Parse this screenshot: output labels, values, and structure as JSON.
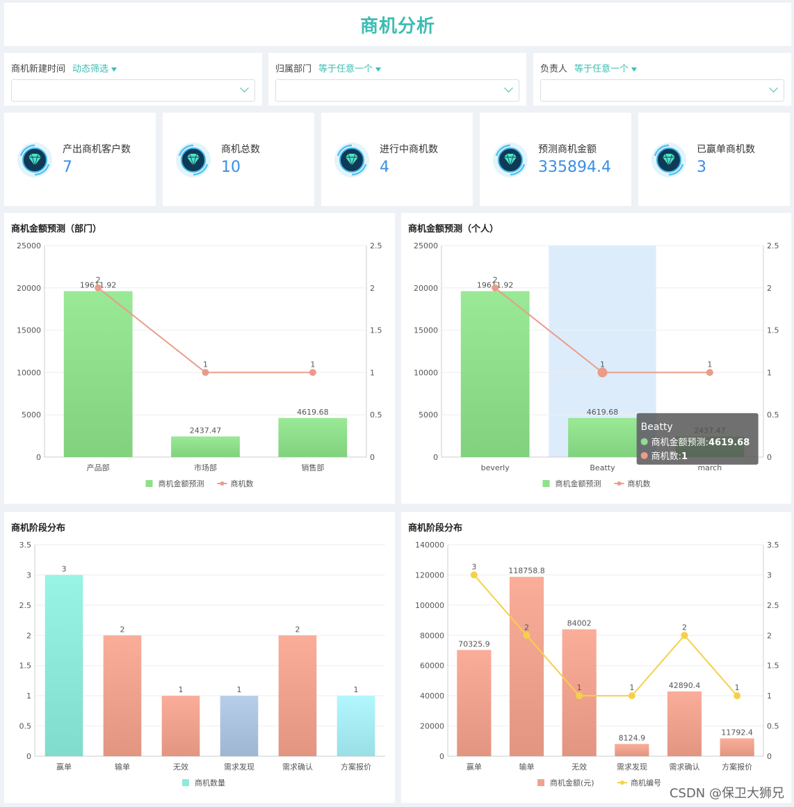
{
  "page": {
    "title": "商机分析",
    "watermark": "CSDN @保卫大狮兄"
  },
  "filters": [
    {
      "label": "商机新建时间",
      "mode": "动态筛选",
      "value": ""
    },
    {
      "label": "归属部门",
      "mode": "等于任意一个",
      "value": ""
    },
    {
      "label": "负责人",
      "mode": "等于任意一个",
      "value": ""
    }
  ],
  "kpis": [
    {
      "label": "产出商机客户数",
      "value": "7",
      "icon": "diamond-icon"
    },
    {
      "label": "商机总数",
      "value": "10",
      "icon": "diamond-icon"
    },
    {
      "label": "进行中商机数",
      "value": "4",
      "icon": "diamond-icon"
    },
    {
      "label": "预测商机金额",
      "value": "335894.4",
      "icon": "diamond-icon"
    },
    {
      "label": "已赢单商机数",
      "value": "3",
      "icon": "diamond-icon"
    }
  ],
  "colors": {
    "accent": "#3dbcb3",
    "kpi_value": "#3a8ee6",
    "green_bar": "#8fdf8c",
    "line_pink": "#ea9c8a",
    "line_yellow": "#f5d04a",
    "highlight": "#dcecfb"
  },
  "chart_data": [
    {
      "type": "bar",
      "title": "商机金额预测（部门）",
      "categories": [
        "产品部",
        "市场部",
        "销售部"
      ],
      "series": [
        {
          "name": "商机金额预测",
          "type": "bar",
          "values": [
            19611.92,
            2437.47,
            4619.68
          ],
          "labels": [
            "19611.92",
            "2437.47",
            "4619.68"
          ],
          "color": "#8fdf8c"
        },
        {
          "name": "商机数",
          "type": "line",
          "axis": "right",
          "values": [
            2,
            1,
            1
          ],
          "labels": [
            "2",
            "1",
            "1"
          ],
          "color": "#ea9c8a"
        }
      ],
      "ylim": [
        0,
        25000
      ],
      "y2lim": [
        0,
        2.5
      ],
      "yticks": [
        "0",
        "5000",
        "10000",
        "15000",
        "20000",
        "25000"
      ],
      "y2ticks": [
        "0",
        "0.5",
        "1",
        "1.5",
        "2",
        "2.5"
      ],
      "legend": "bottom",
      "grid": true
    },
    {
      "type": "bar",
      "title": "商机金额预测（个人）",
      "categories": [
        "beverly",
        "Beatty",
        "march"
      ],
      "series": [
        {
          "name": "商机金额预测",
          "type": "bar",
          "values": [
            19611.92,
            4619.68,
            2437.47
          ],
          "labels": [
            "19611.92",
            "4619.68",
            "2437.47"
          ],
          "color": "#8fdf8c"
        },
        {
          "name": "商机数",
          "type": "line",
          "axis": "right",
          "values": [
            2,
            1,
            1
          ],
          "labels": [
            "2",
            "1",
            "1"
          ],
          "color": "#ea9c8a"
        }
      ],
      "ylim": [
        0,
        25000
      ],
      "y2lim": [
        0,
        2.5
      ],
      "yticks": [
        "0",
        "5000",
        "10000",
        "15000",
        "20000",
        "25000"
      ],
      "y2ticks": [
        "0",
        "0.5",
        "1",
        "1.5",
        "2",
        "2.5"
      ],
      "legend": "bottom",
      "grid": true,
      "highlight_index": 1,
      "tooltip": {
        "title": "Beatty",
        "rows": [
          {
            "label": "商机金额预测:",
            "value": "4619.68",
            "color": "#8fdf8c"
          },
          {
            "label": "商机数:",
            "value": "1",
            "color": "#ea9c8a"
          }
        ]
      }
    },
    {
      "type": "bar",
      "title": "商机阶段分布",
      "categories": [
        "赢单",
        "输单",
        "无效",
        "需求发现",
        "需求确认",
        "方案报价"
      ],
      "series": [
        {
          "name": "商机数量",
          "type": "bar",
          "values": [
            3,
            2,
            1,
            1,
            2,
            1
          ],
          "labels": [
            "3",
            "2",
            "1",
            "1",
            "2",
            "1"
          ],
          "color": "#7de6cf"
        }
      ],
      "bar_colors": [
        "#8eeadb",
        "#f0a38f",
        "#f0a38f",
        "#adc4e0",
        "#f0a38f",
        "#a8ecf4"
      ],
      "ylim": [
        0,
        3.5
      ],
      "yticks": [
        "0",
        "0.5",
        "1",
        "1.5",
        "2",
        "2.5",
        "3",
        "3.5"
      ],
      "legend": "bottom",
      "grid": true
    },
    {
      "type": "bar",
      "title": "商机阶段分布",
      "categories": [
        "赢单",
        "输单",
        "无效",
        "需求发现",
        "需求确认",
        "方案报价"
      ],
      "series": [
        {
          "name": "商机金额(元)",
          "type": "bar",
          "values": [
            70325.9,
            118758.8,
            84002,
            8124.9,
            42890.4,
            11792.4
          ],
          "labels": [
            "70325.9",
            "118758.8",
            "84002",
            "8124.9",
            "42890.4",
            "11792.4"
          ],
          "color": "#f0a38f"
        },
        {
          "name": "商机编号",
          "type": "line",
          "axis": "right",
          "values": [
            3,
            2,
            1,
            1,
            2,
            1
          ],
          "labels": [
            "3",
            "2",
            "1",
            "1",
            "2",
            "1"
          ],
          "color": "#f5d04a"
        }
      ],
      "ylim": [
        0,
        140000
      ],
      "y2lim": [
        0,
        3.5
      ],
      "yticks": [
        "0",
        "20000",
        "40000",
        "60000",
        "80000",
        "100000",
        "120000",
        "140000"
      ],
      "y2ticks": [
        "0",
        "0.5",
        "1",
        "1.5",
        "2",
        "2.5",
        "3",
        "3.5"
      ],
      "legend": "bottom",
      "grid": true
    }
  ]
}
